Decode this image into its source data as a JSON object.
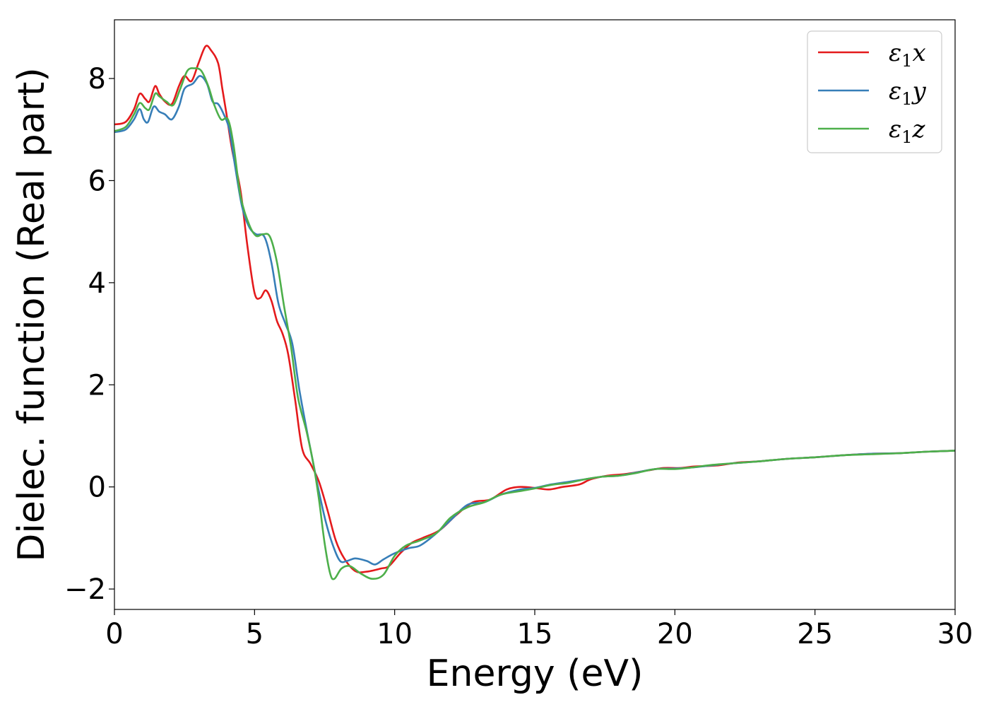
{
  "chart_data": {
    "type": "line",
    "title": "",
    "xlabel": "Energy (eV)",
    "ylabel": "Dielec. function (Real part)",
    "xlim": [
      0,
      30
    ],
    "ylim": [
      -2.4,
      9.15
    ],
    "xticks": [
      0,
      5,
      10,
      15,
      20,
      25,
      30
    ],
    "xtick_labels": [
      "0",
      "5",
      "10",
      "15",
      "20",
      "25",
      "30"
    ],
    "yticks": [
      -2,
      0,
      2,
      4,
      6,
      8
    ],
    "ytick_labels": [
      "−2",
      "0",
      "2",
      "4",
      "6",
      "8"
    ],
    "grid": false,
    "legend_position": "top-right",
    "series": [
      {
        "name": "ε₁x",
        "legend": {
          "symbol": "ε",
          "sub": "1",
          "suffix": "x"
        },
        "color": "#e41a1c",
        "points": [
          [
            0,
            7.1
          ],
          [
            0.4,
            7.15
          ],
          [
            0.7,
            7.4
          ],
          [
            0.9,
            7.7
          ],
          [
            1.1,
            7.6
          ],
          [
            1.25,
            7.55
          ],
          [
            1.45,
            7.85
          ],
          [
            1.6,
            7.7
          ],
          [
            1.8,
            7.55
          ],
          [
            2.05,
            7.5
          ],
          [
            2.3,
            7.85
          ],
          [
            2.5,
            8.05
          ],
          [
            2.75,
            7.95
          ],
          [
            3.0,
            8.3
          ],
          [
            3.25,
            8.63
          ],
          [
            3.45,
            8.55
          ],
          [
            3.7,
            8.3
          ],
          [
            3.85,
            7.8
          ],
          [
            4.0,
            7.3
          ],
          [
            4.2,
            6.6
          ],
          [
            4.5,
            5.8
          ],
          [
            4.75,
            4.7
          ],
          [
            5.0,
            3.8
          ],
          [
            5.2,
            3.7
          ],
          [
            5.4,
            3.85
          ],
          [
            5.6,
            3.65
          ],
          [
            5.8,
            3.25
          ],
          [
            6.0,
            3.0
          ],
          [
            6.2,
            2.6
          ],
          [
            6.45,
            1.7
          ],
          [
            6.7,
            0.75
          ],
          [
            7.0,
            0.45
          ],
          [
            7.3,
            0.1
          ],
          [
            7.6,
            -0.45
          ],
          [
            7.9,
            -1.05
          ],
          [
            8.2,
            -1.4
          ],
          [
            8.6,
            -1.65
          ],
          [
            9.0,
            -1.66
          ],
          [
            9.5,
            -1.6
          ],
          [
            9.8,
            -1.55
          ],
          [
            10.2,
            -1.3
          ],
          [
            10.6,
            -1.1
          ],
          [
            11.0,
            -1.0
          ],
          [
            11.6,
            -0.85
          ],
          [
            12.2,
            -0.55
          ],
          [
            12.8,
            -0.3
          ],
          [
            13.4,
            -0.25
          ],
          [
            14.0,
            -0.05
          ],
          [
            14.5,
            0.0
          ],
          [
            15.0,
            -0.02
          ],
          [
            15.5,
            -0.05
          ],
          [
            16.0,
            0.0
          ],
          [
            16.6,
            0.05
          ],
          [
            17.0,
            0.15
          ],
          [
            17.6,
            0.22
          ],
          [
            18.2,
            0.25
          ],
          [
            19.0,
            0.32
          ],
          [
            19.6,
            0.37
          ],
          [
            20.2,
            0.37
          ],
          [
            20.7,
            0.4
          ],
          [
            21.5,
            0.42
          ],
          [
            22.3,
            0.48
          ],
          [
            23.0,
            0.5
          ],
          [
            24.0,
            0.55
          ],
          [
            25.0,
            0.58
          ],
          [
            26.0,
            0.62
          ],
          [
            27.0,
            0.65
          ],
          [
            28.0,
            0.66
          ],
          [
            29.0,
            0.69
          ],
          [
            30.0,
            0.71
          ]
        ]
      },
      {
        "name": "ε₁y",
        "legend": {
          "symbol": "ε",
          "sub": "1",
          "suffix": "y"
        },
        "color": "#377eb8",
        "points": [
          [
            0,
            6.95
          ],
          [
            0.4,
            7.0
          ],
          [
            0.7,
            7.2
          ],
          [
            0.9,
            7.4
          ],
          [
            1.05,
            7.2
          ],
          [
            1.2,
            7.15
          ],
          [
            1.4,
            7.45
          ],
          [
            1.6,
            7.35
          ],
          [
            1.8,
            7.3
          ],
          [
            2.05,
            7.2
          ],
          [
            2.3,
            7.45
          ],
          [
            2.5,
            7.8
          ],
          [
            2.8,
            7.9
          ],
          [
            3.05,
            8.05
          ],
          [
            3.3,
            7.9
          ],
          [
            3.5,
            7.55
          ],
          [
            3.7,
            7.5
          ],
          [
            3.9,
            7.3
          ],
          [
            4.1,
            7.0
          ],
          [
            4.3,
            6.3
          ],
          [
            4.55,
            5.5
          ],
          [
            4.8,
            5.1
          ],
          [
            5.05,
            4.95
          ],
          [
            5.35,
            4.9
          ],
          [
            5.6,
            4.4
          ],
          [
            5.85,
            3.6
          ],
          [
            6.1,
            3.2
          ],
          [
            6.35,
            2.8
          ],
          [
            6.6,
            1.9
          ],
          [
            6.85,
            1.15
          ],
          [
            7.1,
            0.45
          ],
          [
            7.3,
            -0.1
          ],
          [
            7.55,
            -0.7
          ],
          [
            7.8,
            -1.15
          ],
          [
            8.05,
            -1.45
          ],
          [
            8.3,
            -1.45
          ],
          [
            8.6,
            -1.4
          ],
          [
            9.0,
            -1.45
          ],
          [
            9.3,
            -1.52
          ],
          [
            9.6,
            -1.42
          ],
          [
            10.0,
            -1.3
          ],
          [
            10.5,
            -1.2
          ],
          [
            10.9,
            -1.15
          ],
          [
            11.4,
            -0.95
          ],
          [
            12.0,
            -0.65
          ],
          [
            12.6,
            -0.35
          ],
          [
            13.2,
            -0.3
          ],
          [
            13.8,
            -0.15
          ],
          [
            14.5,
            -0.05
          ],
          [
            15.0,
            -0.02
          ],
          [
            15.6,
            0.05
          ],
          [
            16.2,
            0.1
          ],
          [
            16.8,
            0.15
          ],
          [
            17.4,
            0.2
          ],
          [
            18.0,
            0.22
          ],
          [
            18.6,
            0.28
          ],
          [
            19.3,
            0.35
          ],
          [
            20.0,
            0.36
          ],
          [
            20.6,
            0.38
          ],
          [
            21.3,
            0.42
          ],
          [
            22.0,
            0.46
          ],
          [
            23.0,
            0.5
          ],
          [
            24.0,
            0.55
          ],
          [
            25.0,
            0.58
          ],
          [
            26.0,
            0.62
          ],
          [
            27.0,
            0.65
          ],
          [
            28.0,
            0.66
          ],
          [
            29.0,
            0.69
          ],
          [
            30.0,
            0.71
          ]
        ]
      },
      {
        "name": "ε₁z",
        "legend": {
          "symbol": "ε",
          "sub": "1",
          "suffix": "z"
        },
        "color": "#4daf4a",
        "points": [
          [
            0,
            6.97
          ],
          [
            0.4,
            7.05
          ],
          [
            0.7,
            7.3
          ],
          [
            0.9,
            7.52
          ],
          [
            1.1,
            7.42
          ],
          [
            1.25,
            7.4
          ],
          [
            1.45,
            7.7
          ],
          [
            1.6,
            7.65
          ],
          [
            1.85,
            7.55
          ],
          [
            2.1,
            7.48
          ],
          [
            2.35,
            7.8
          ],
          [
            2.6,
            8.15
          ],
          [
            2.85,
            8.2
          ],
          [
            3.1,
            8.15
          ],
          [
            3.35,
            7.85
          ],
          [
            3.55,
            7.5
          ],
          [
            3.8,
            7.2
          ],
          [
            4.05,
            7.2
          ],
          [
            4.25,
            6.7
          ],
          [
            4.5,
            5.7
          ],
          [
            4.8,
            5.15
          ],
          [
            5.05,
            4.92
          ],
          [
            5.3,
            4.95
          ],
          [
            5.55,
            4.9
          ],
          [
            5.8,
            4.4
          ],
          [
            6.05,
            3.55
          ],
          [
            6.3,
            2.75
          ],
          [
            6.55,
            1.75
          ],
          [
            6.85,
            1.1
          ],
          [
            7.1,
            0.45
          ],
          [
            7.3,
            -0.25
          ],
          [
            7.5,
            -1.1
          ],
          [
            7.7,
            -1.7
          ],
          [
            7.85,
            -1.8
          ],
          [
            8.1,
            -1.6
          ],
          [
            8.4,
            -1.55
          ],
          [
            8.8,
            -1.7
          ],
          [
            9.2,
            -1.8
          ],
          [
            9.6,
            -1.72
          ],
          [
            10.0,
            -1.35
          ],
          [
            10.4,
            -1.15
          ],
          [
            10.9,
            -1.05
          ],
          [
            11.5,
            -0.9
          ],
          [
            12.0,
            -0.6
          ],
          [
            12.6,
            -0.4
          ],
          [
            13.2,
            -0.3
          ],
          [
            13.8,
            -0.15
          ],
          [
            14.5,
            -0.08
          ],
          [
            15.0,
            -0.03
          ],
          [
            15.6,
            0.04
          ],
          [
            16.2,
            0.08
          ],
          [
            16.8,
            0.15
          ],
          [
            17.4,
            0.2
          ],
          [
            18.0,
            0.22
          ],
          [
            18.6,
            0.27
          ],
          [
            19.3,
            0.35
          ],
          [
            20.0,
            0.35
          ],
          [
            20.6,
            0.38
          ],
          [
            21.3,
            0.43
          ],
          [
            22.0,
            0.46
          ],
          [
            23.0,
            0.5
          ],
          [
            24.0,
            0.55
          ],
          [
            25.0,
            0.58
          ],
          [
            26.0,
            0.62
          ],
          [
            27.0,
            0.64
          ],
          [
            28.0,
            0.66
          ],
          [
            29.0,
            0.69
          ],
          [
            30.0,
            0.71
          ]
        ]
      }
    ]
  }
}
